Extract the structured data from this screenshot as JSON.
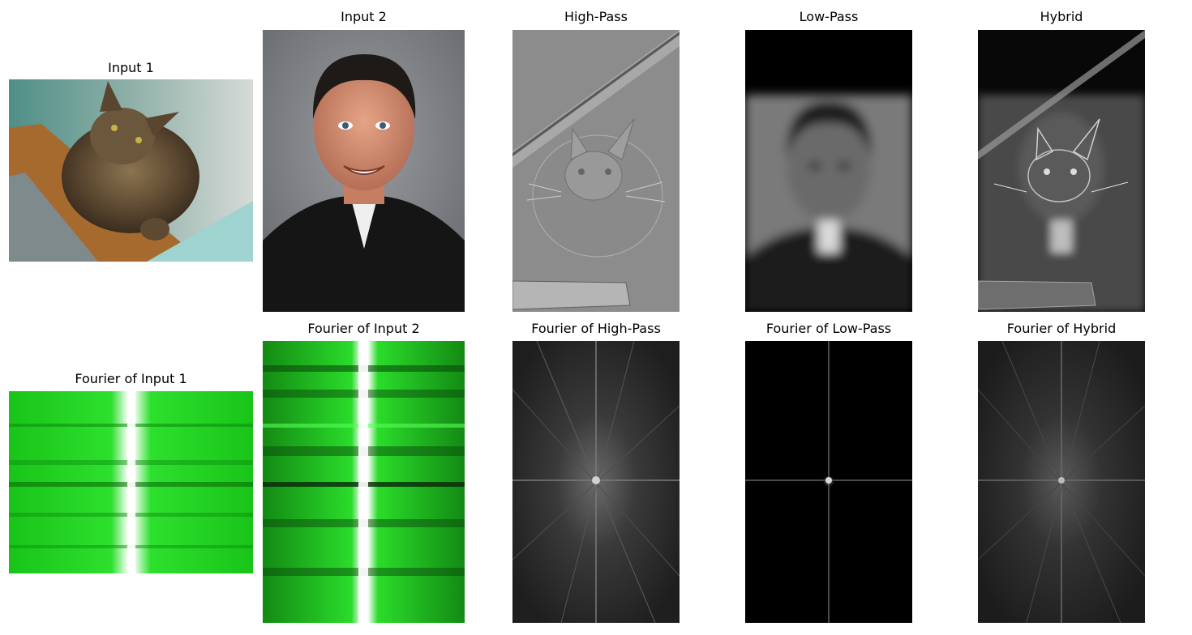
{
  "figure": {
    "panels": [
      {
        "id": "input1",
        "title": "Input 1"
      },
      {
        "id": "input2",
        "title": "Input 2"
      },
      {
        "id": "highpass",
        "title": "High-Pass"
      },
      {
        "id": "lowpass",
        "title": "Low-Pass"
      },
      {
        "id": "hybrid",
        "title": "Hybrid"
      },
      {
        "id": "fourier-input1",
        "title": "Fourier of Input 1"
      },
      {
        "id": "fourier-input2",
        "title": "Fourier of Input 2"
      },
      {
        "id": "fourier-highpass",
        "title": "Fourier of High-Pass"
      },
      {
        "id": "fourier-lowpass",
        "title": "Fourier of Low-Pass"
      },
      {
        "id": "fourier-hybrid",
        "title": "Fourier of Hybrid"
      }
    ]
  },
  "colors": {
    "background": "#ffffff",
    "title_text": "#000000",
    "spectrum_green": "#22dd22",
    "spectrum_gray": "#2a2a2a"
  }
}
